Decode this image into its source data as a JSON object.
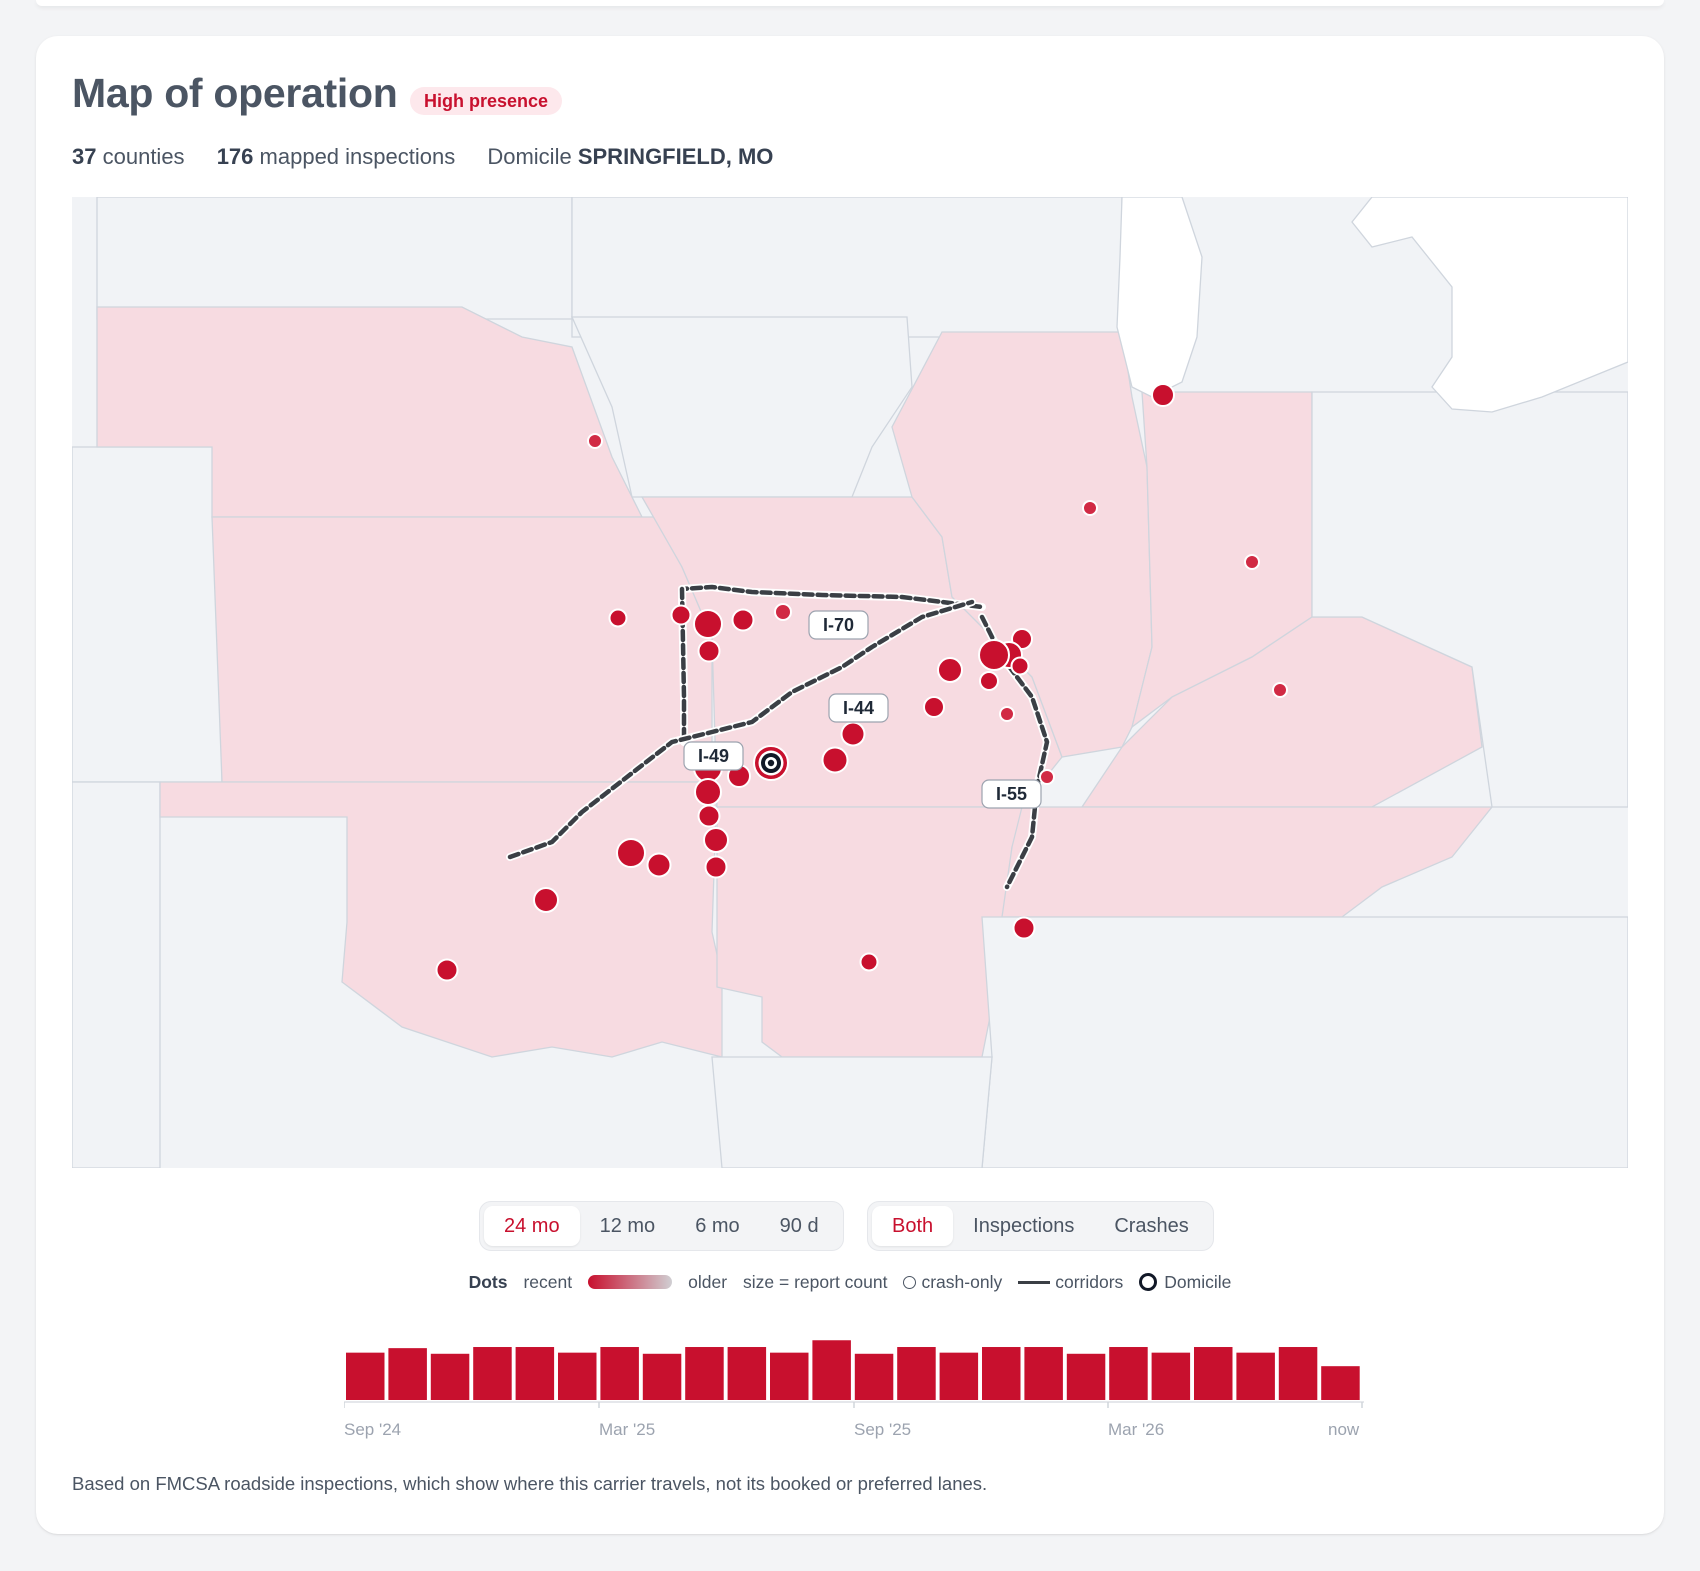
{
  "title": "Map of operation",
  "badge": "High presence",
  "stats": {
    "counties_value": "37",
    "counties_label": "counties",
    "inspections_value": "176",
    "inspections_label": "mapped inspections",
    "domicile_label": "Domicile",
    "domicile_value": "SPRINGFIELD, MO"
  },
  "map": {
    "route_labels": [
      "I-70",
      "I-44",
      "I-49",
      "I-55"
    ],
    "colors": {
      "active_state": "#f7dbe1",
      "dot": "#c8102e",
      "corridor": "#3b3f45"
    }
  },
  "controls": {
    "range_options": [
      "24 mo",
      "12 mo",
      "6 mo",
      "90 d"
    ],
    "range_selected": "24 mo",
    "type_options": [
      "Both",
      "Inspections",
      "Crashes"
    ],
    "type_selected": "Both"
  },
  "legend": {
    "dots": "Dots",
    "recent": "recent",
    "older": "older",
    "size": "size = report count",
    "crash_only": "crash-only",
    "corridors": "corridors",
    "domicile": "Domicile"
  },
  "timeline": {
    "values": [
      42,
      46,
      41,
      47,
      47,
      42,
      47,
      41,
      47,
      47,
      42,
      53,
      41,
      47,
      42,
      47,
      47,
      41,
      47,
      42,
      47,
      42,
      47,
      30
    ],
    "ymax": 55,
    "axis_labels": [
      "Sep '24",
      "Mar '25",
      "Sep '25",
      "Mar '26",
      "now"
    ]
  },
  "footnote": "Based on FMCSA roadside inspections, which show where this carrier travels, not its booked or preferred lanes."
}
